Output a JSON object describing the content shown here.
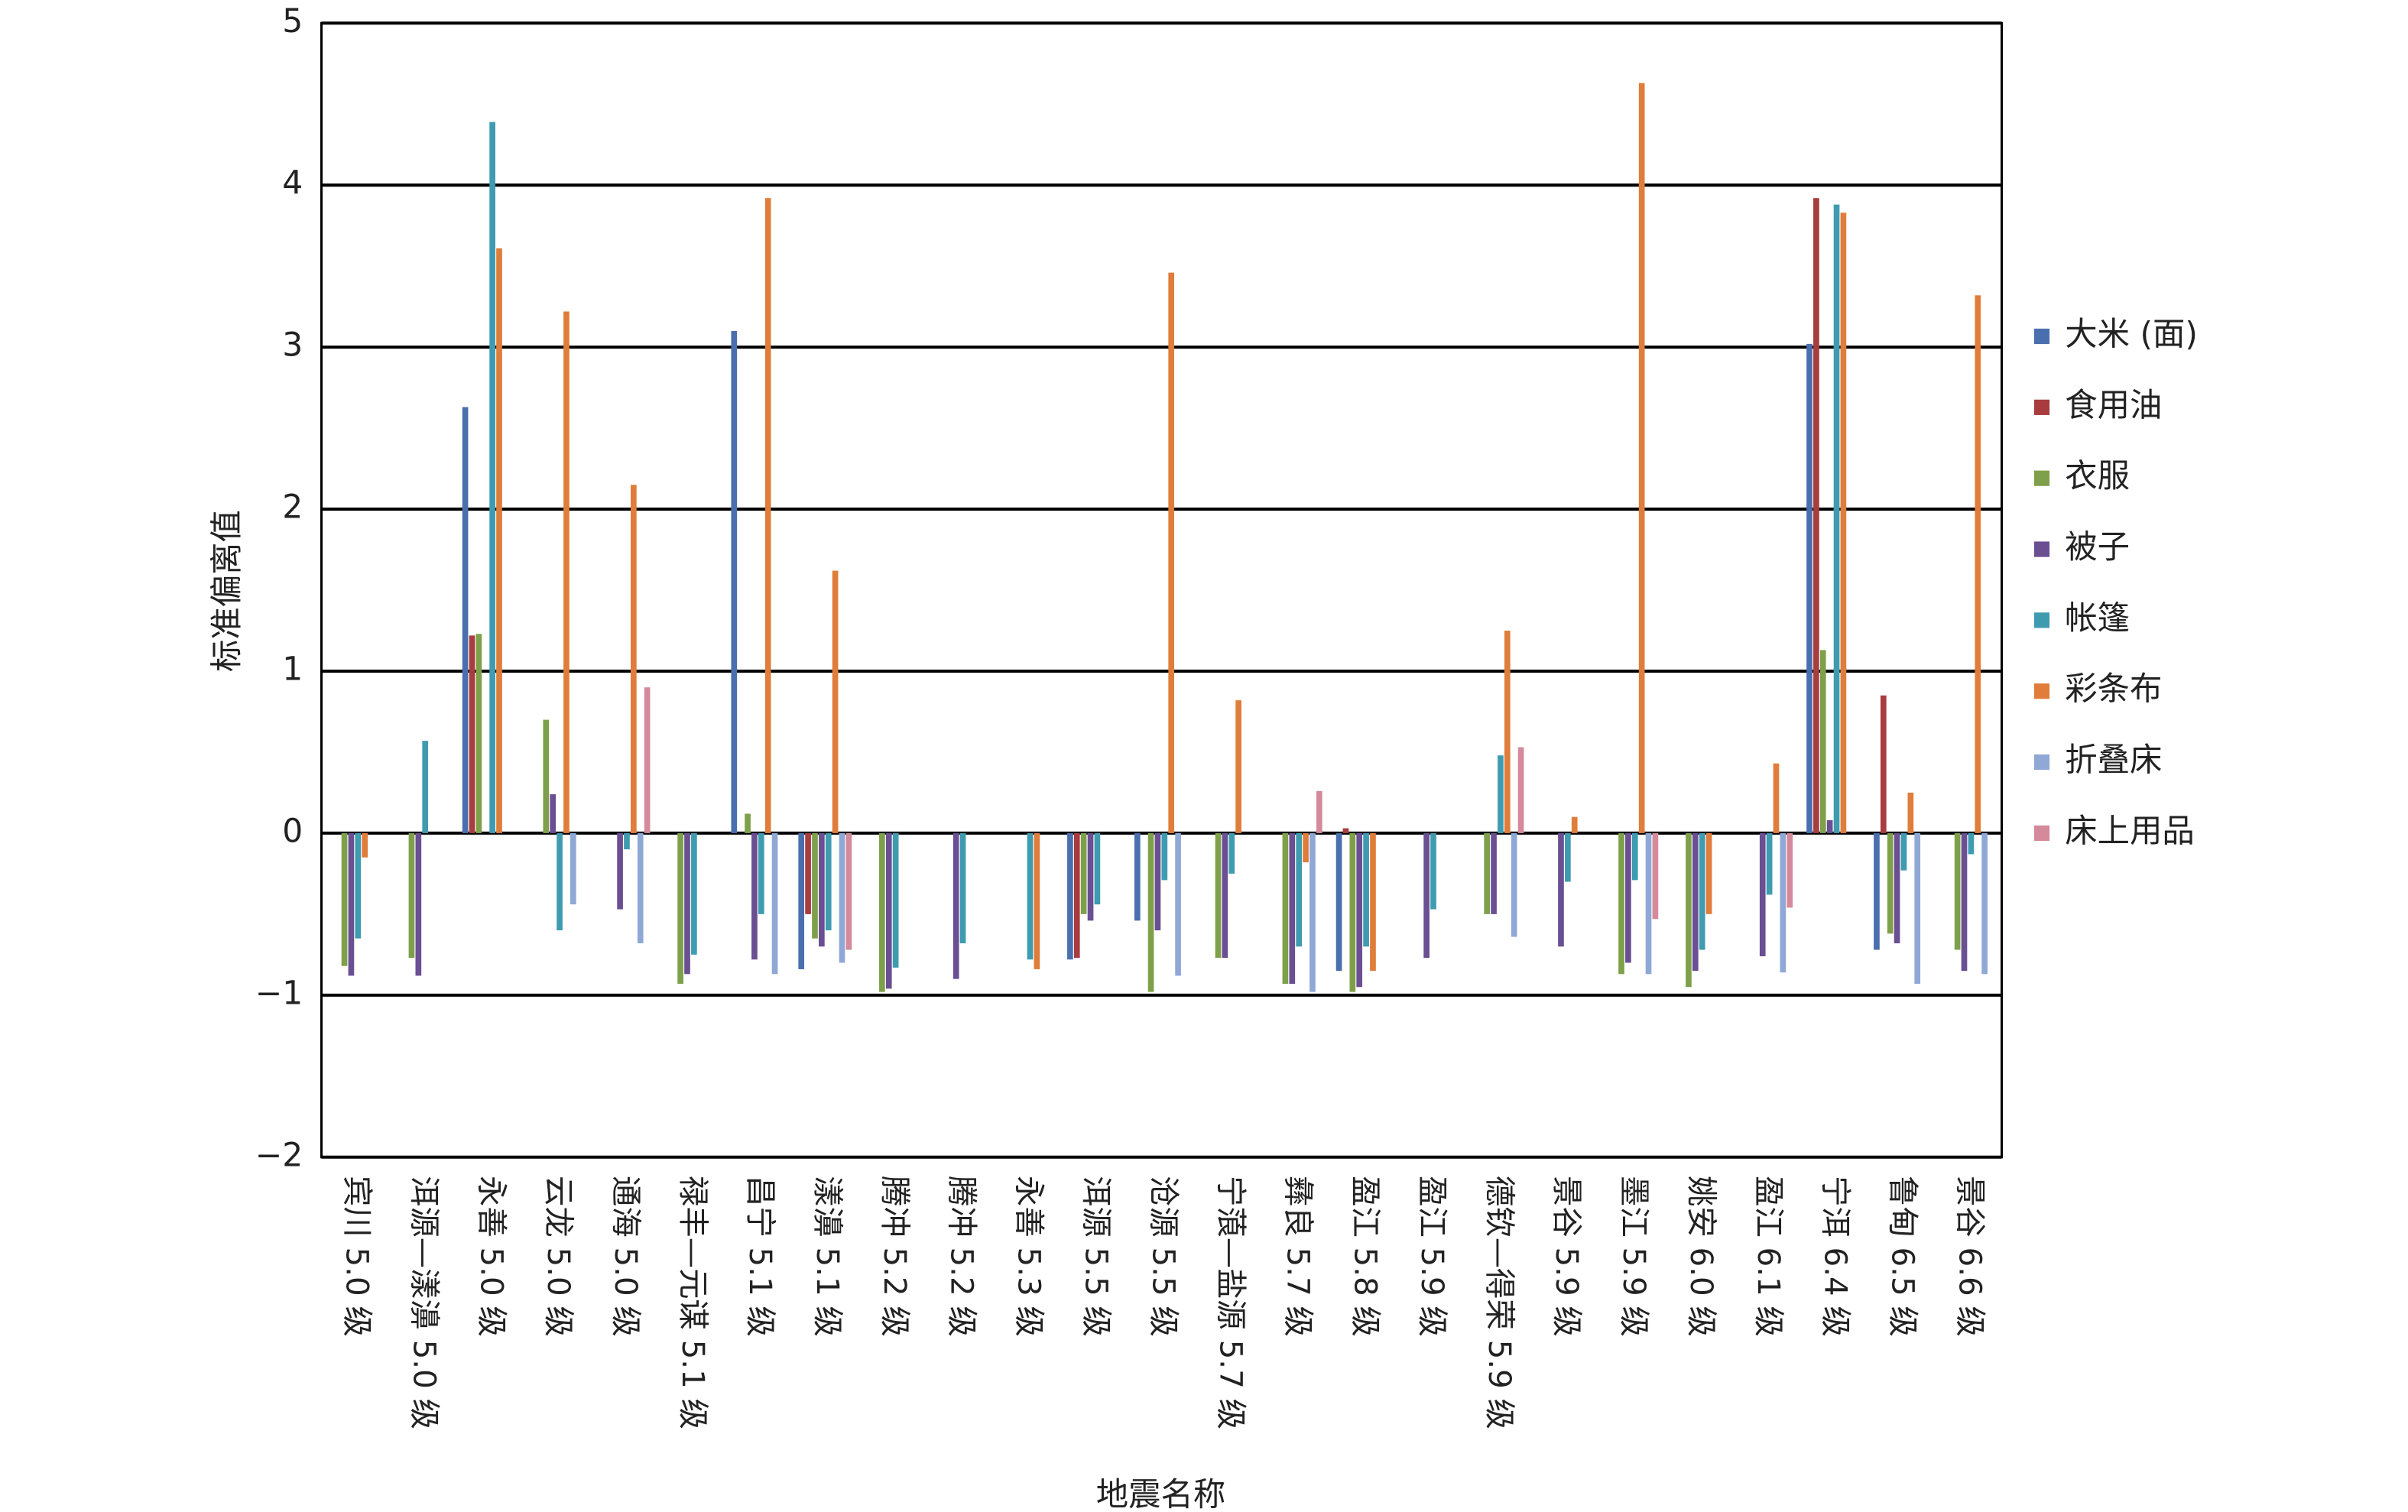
{
  "chart_data": {
    "type": "bar",
    "x_label": "地震名称",
    "y_label": "标准偏离值",
    "categories": [
      "宾川 5.0 级",
      "洱源—漾濞 5.0 级",
      "永善 5.0 级",
      "云龙 5.0 级",
      "通海 5.0 级",
      "禄丰—元谋 5.1 级",
      "昌宁 5.1 级",
      "漾濞 5.1 级",
      "腾冲 5.2 级",
      "腾冲 5.2 级",
      "永善 5.3 级",
      "洱源 5.5 级",
      "沧源 5.5 级",
      "宁蒗—盐源 5.7 级",
      "彝良 5.7 级",
      "盈江 5.8 级",
      "盈江 5.9 级",
      "德钦—得荣 5.9 级",
      "景谷 5.9 级",
      "墨江 5.9 级",
      "姚安 6.0 级",
      "盈江 6.1 级",
      "宁洱 6.4 级",
      "鲁甸 6.5 级",
      "景谷 6.6 级"
    ],
    "series": [
      {
        "name": "大米 (面)",
        "color": "#4a6fae",
        "values": [
          null,
          null,
          2.63,
          null,
          null,
          null,
          3.1,
          -0.84,
          null,
          null,
          null,
          -0.78,
          -0.54,
          null,
          null,
          -0.85,
          null,
          null,
          null,
          null,
          null,
          null,
          3.02,
          -0.72,
          null
        ]
      },
      {
        "name": "食用油",
        "color": "#a83c3f",
        "values": [
          null,
          null,
          1.22,
          null,
          null,
          null,
          null,
          -0.5,
          null,
          null,
          null,
          -0.77,
          null,
          null,
          null,
          0.03,
          null,
          null,
          null,
          null,
          null,
          null,
          3.92,
          0.85,
          null
        ]
      },
      {
        "name": "衣服",
        "color": "#7fa04a",
        "values": [
          -0.82,
          -0.77,
          1.23,
          0.7,
          null,
          -0.93,
          0.12,
          -0.65,
          -0.98,
          null,
          null,
          -0.5,
          -0.98,
          -0.77,
          -0.93,
          -0.98,
          null,
          -0.5,
          null,
          -0.87,
          -0.95,
          null,
          1.13,
          -0.62,
          -0.72
        ]
      },
      {
        "name": "被子",
        "color": "#6a4f92",
        "values": [
          -0.88,
          -0.88,
          null,
          0.24,
          -0.47,
          -0.87,
          -0.78,
          -0.7,
          -0.96,
          -0.9,
          null,
          -0.54,
          -0.6,
          -0.77,
          -0.93,
          -0.95,
          -0.77,
          -0.5,
          -0.7,
          -0.8,
          -0.85,
          -0.76,
          0.08,
          -0.68,
          -0.85
        ]
      },
      {
        "name": "帐篷",
        "color": "#3f9bb0",
        "values": [
          -0.65,
          0.57,
          4.39,
          -0.6,
          -0.1,
          -0.75,
          -0.5,
          -0.6,
          -0.83,
          -0.68,
          -0.78,
          -0.44,
          -0.29,
          -0.25,
          -0.7,
          -0.7,
          -0.47,
          0.48,
          -0.3,
          -0.29,
          -0.72,
          -0.38,
          3.88,
          -0.23,
          -0.13
        ]
      },
      {
        "name": "彩条布",
        "color": "#e07d3a",
        "values": [
          -0.15,
          null,
          3.61,
          3.22,
          2.15,
          null,
          3.92,
          1.62,
          null,
          null,
          -0.84,
          null,
          3.46,
          0.82,
          -0.18,
          -0.85,
          null,
          1.25,
          0.1,
          4.63,
          -0.5,
          0.43,
          3.83,
          0.25,
          3.32
        ]
      },
      {
        "name": "折叠床",
        "color": "#8fa8d6",
        "values": [
          null,
          null,
          null,
          -0.44,
          -0.68,
          null,
          -0.87,
          -0.8,
          null,
          null,
          null,
          null,
          -0.88,
          null,
          -0.98,
          null,
          null,
          -0.64,
          null,
          -0.87,
          null,
          -0.86,
          null,
          -0.93,
          -0.87
        ]
      },
      {
        "name": "床上用品",
        "color": "#d48a9a",
        "values": [
          null,
          null,
          null,
          null,
          0.9,
          null,
          null,
          -0.72,
          null,
          null,
          null,
          null,
          null,
          null,
          0.26,
          null,
          null,
          0.53,
          null,
          -0.53,
          null,
          -0.46,
          null,
          null,
          null
        ]
      }
    ],
    "ylim": [
      -2,
      5
    ],
    "yticks": [
      {
        "value": -2,
        "label": "−2"
      },
      {
        "value": -1,
        "label": "−1"
      },
      0,
      1,
      2,
      3,
      4,
      5
    ],
    "grid": true,
    "legend": "right"
  }
}
